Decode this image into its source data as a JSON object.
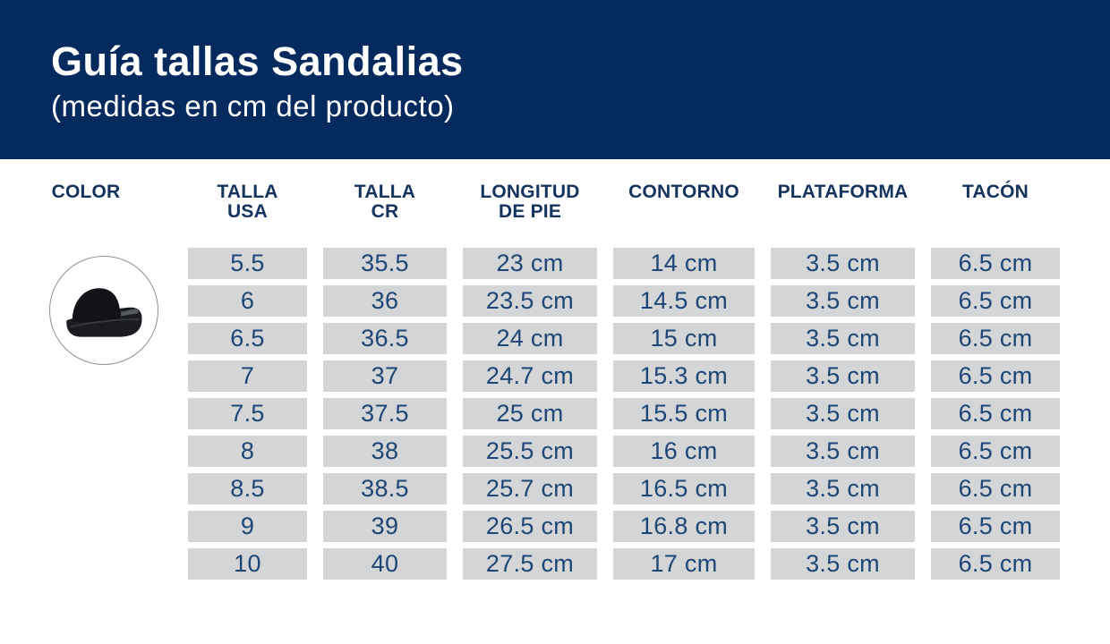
{
  "header": {
    "title": "Guía tallas Sandalias",
    "subtitle": "(medidas en cm del producto)"
  },
  "table": {
    "columns": [
      {
        "id": "color",
        "line1": "COLOR",
        "line2": ""
      },
      {
        "id": "talla-usa",
        "line1": "TALLA",
        "line2": "USA"
      },
      {
        "id": "talla-cr",
        "line1": "TALLA",
        "line2": "CR"
      },
      {
        "id": "longitud-de-pie",
        "line1": "LONGITUD",
        "line2": "DE PIE"
      },
      {
        "id": "contorno",
        "line1": "CONTORNO",
        "line2": ""
      },
      {
        "id": "plataforma",
        "line1": "PLATAFORMA",
        "line2": ""
      },
      {
        "id": "tacon",
        "line1": "TACÓN",
        "line2": ""
      }
    ],
    "rows": [
      [
        "5.5",
        "35.5",
        "23 cm",
        "14 cm",
        "3.5 cm",
        "6.5 cm"
      ],
      [
        "6",
        "36",
        "23.5 cm",
        "14.5 cm",
        "3.5 cm",
        "6.5 cm"
      ],
      [
        "6.5",
        "36.5",
        "24 cm",
        "15 cm",
        "3.5 cm",
        "6.5 cm"
      ],
      [
        "7",
        "37",
        "24.7 cm",
        "15.3 cm",
        "3.5 cm",
        "6.5 cm"
      ],
      [
        "7.5",
        "37.5",
        "25 cm",
        "15.5 cm",
        "3.5 cm",
        "6.5 cm"
      ],
      [
        "8",
        "38",
        "25.5 cm",
        "16 cm",
        "3.5 cm",
        "6.5 cm"
      ],
      [
        "8.5",
        "38.5",
        "25.7 cm",
        "16.5 cm",
        "3.5 cm",
        "6.5 cm"
      ],
      [
        "9",
        "39",
        "26.5 cm",
        "16.8 cm",
        "3.5 cm",
        "6.5 cm"
      ],
      [
        "10",
        "40",
        "27.5 cm",
        "17 cm",
        "3.5 cm",
        "6.5 cm"
      ]
    ]
  },
  "product": {
    "icon": "black-platform-sandal"
  },
  "colors": {
    "header_bg": "#052a5e",
    "title_text": "#ffffff",
    "heading_text": "#14335d",
    "cell_bg": "#d4d5d7",
    "cell_text": "#1d4676",
    "circle_border": "#8f9094",
    "sandal_black": "#1a1c21"
  },
  "chart_data": {
    "type": "table",
    "title": "Guía tallas Sandalias",
    "subtitle": "(medidas en cm del producto)",
    "columns": [
      "COLOR",
      "TALLA USA",
      "TALLA CR",
      "LONGITUD DE PIE",
      "CONTORNO",
      "PLATAFORMA",
      "TACÓN"
    ],
    "rows": [
      [
        "black-platform-sandal",
        "5.5",
        "35.5",
        "23 cm",
        "14 cm",
        "3.5 cm",
        "6.5 cm"
      ],
      [
        "",
        "6",
        "36",
        "23.5 cm",
        "14.5 cm",
        "3.5 cm",
        "6.5 cm"
      ],
      [
        "",
        "6.5",
        "36.5",
        "24 cm",
        "15 cm",
        "3.5 cm",
        "6.5 cm"
      ],
      [
        "",
        "7",
        "37",
        "24.7 cm",
        "15.3 cm",
        "3.5 cm",
        "6.5 cm"
      ],
      [
        "",
        "7.5",
        "37.5",
        "25 cm",
        "15.5 cm",
        "3.5 cm",
        "6.5 cm"
      ],
      [
        "",
        "8",
        "38",
        "25.5 cm",
        "16 cm",
        "3.5 cm",
        "6.5 cm"
      ],
      [
        "",
        "8.5",
        "38.5",
        "25.7 cm",
        "16.5 cm",
        "3.5 cm",
        "6.5 cm"
      ],
      [
        "",
        "9",
        "39",
        "26.5 cm",
        "16.8 cm",
        "3.5 cm",
        "6.5 cm"
      ],
      [
        "",
        "10",
        "40",
        "27.5 cm",
        "17 cm",
        "3.5 cm",
        "6.5 cm"
      ]
    ]
  }
}
